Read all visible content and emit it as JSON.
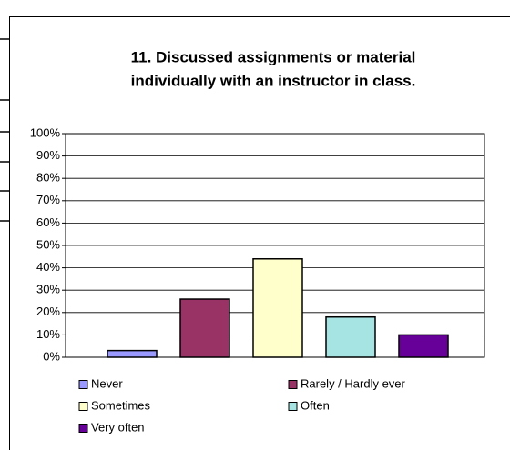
{
  "chart_data": {
    "type": "bar",
    "title": [
      "11. Discussed assignments or material",
      "individually with an instructor in class."
    ],
    "categories": [
      "Never",
      "Rarely / Hardly ever",
      "Sometimes",
      "Often",
      "Very often"
    ],
    "values": [
      3,
      26,
      44,
      18,
      10
    ],
    "colors": [
      "#9999ff",
      "#993366",
      "#ffffcc",
      "#a6e3e3",
      "#660099"
    ],
    "ylim": [
      0,
      100
    ],
    "yticks": [
      {
        "value": 0,
        "label": "0%"
      },
      {
        "value": 10,
        "label": "10%"
      },
      {
        "value": 20,
        "label": "20%"
      },
      {
        "value": 30,
        "label": "30%"
      },
      {
        "value": 40,
        "label": "40%"
      },
      {
        "value": 50,
        "label": "50%"
      },
      {
        "value": 60,
        "label": "60%"
      },
      {
        "value": 70,
        "label": "70%"
      },
      {
        "value": 80,
        "label": "80%"
      },
      {
        "value": 90,
        "label": "90%"
      },
      {
        "value": 100,
        "label": "100%"
      }
    ],
    "grid": true
  }
}
